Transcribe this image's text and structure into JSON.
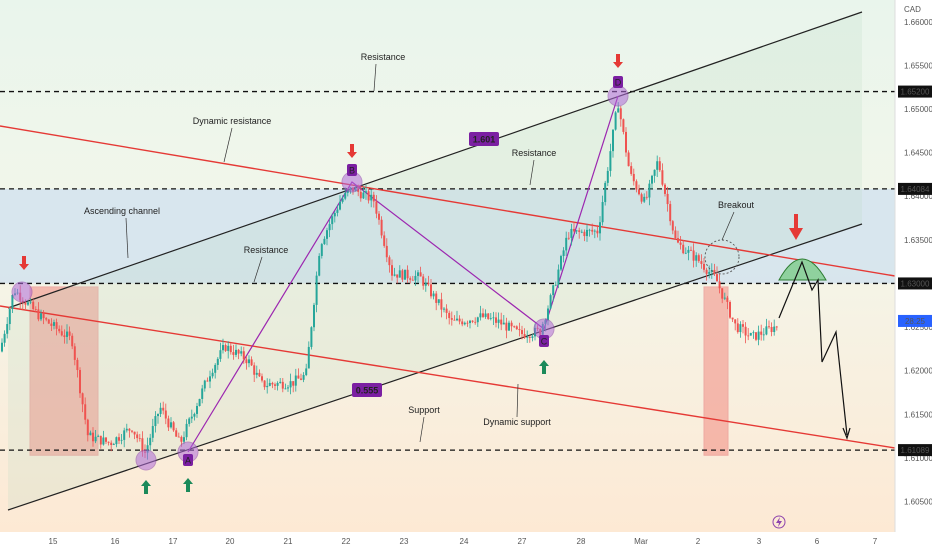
{
  "chart_data": {
    "type": "candlestick",
    "currency": "CAD",
    "y_ticks": [
      1.66,
      1.655,
      1.65,
      1.645,
      1.64,
      1.635,
      1.63,
      1.625,
      1.62,
      1.615,
      1.61,
      1.605
    ],
    "y_tick_labels": [
      "1.66000",
      "1.65500",
      "1.65000",
      "1.64500",
      "1.64000",
      "1.63500",
      "1.63000",
      "1.62500",
      "1.62000",
      "1.61500",
      "1.61000",
      "1.60500"
    ],
    "ylim": [
      1.6015,
      1.6625
    ],
    "x_labels": [
      "15",
      "16",
      "17",
      "20",
      "21",
      "22",
      "23",
      "24",
      "27",
      "28",
      "Mar",
      "2",
      "3",
      "6",
      "7"
    ],
    "highlighted_price_labels": [
      {
        "value": 1.652,
        "text": "1.65200"
      },
      {
        "value": 1.64084,
        "text": "1.64084"
      },
      {
        "value": 1.63,
        "text": "1.63000"
      },
      {
        "value": 1.61089,
        "text": "1.61089"
      }
    ],
    "current_price_label": "28:25",
    "current_price": 1.6257,
    "horizontal_levels": [
      1.652,
      1.64084,
      1.63,
      1.61089
    ],
    "pattern_points": [
      {
        "label": "A",
        "price": 1.6111
      },
      {
        "label": "B",
        "price": 1.6409
      },
      {
        "label": "C",
        "price": 1.6237
      },
      {
        "label": "D",
        "price": 1.652
      }
    ],
    "fib_ratios": [
      "1.601",
      "0.555"
    ],
    "annotations": {
      "resistance_top": "Resistance",
      "dynamic_resistance": "Dynamic resistance",
      "resistance_mid": "Resistance",
      "ascending_channel": "Ascending channel",
      "resistance_left": "Resistance",
      "breakout": "Breakout",
      "support": "Support",
      "dynamic_support": "Dynamic support"
    },
    "colors": {
      "up": "#26a69a",
      "down": "#ef5350",
      "pattern": "#9c27b0",
      "trendline": "#e53935",
      "channel": "#222222",
      "badge": "#7b1fa2"
    }
  }
}
